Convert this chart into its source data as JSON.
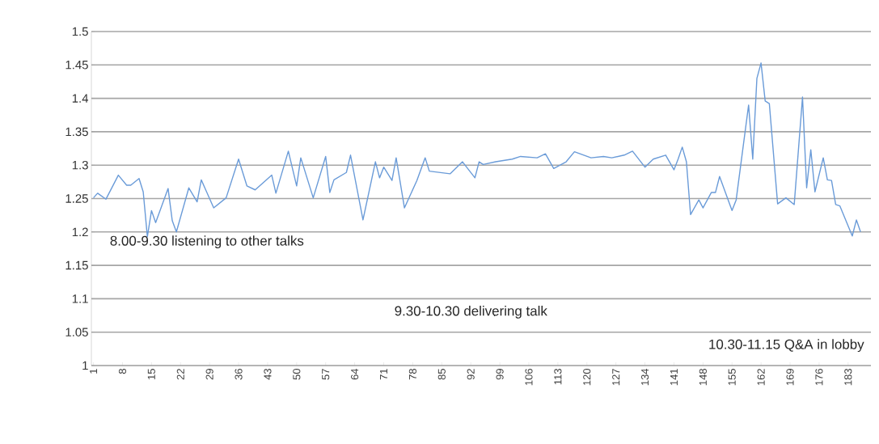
{
  "chart_data": {
    "type": "line",
    "x": [
      1,
      2,
      4,
      7,
      9,
      10,
      12,
      13,
      14,
      15,
      16,
      19,
      20,
      21,
      24,
      26,
      27,
      30,
      33,
      36,
      38,
      40,
      44,
      45,
      48,
      50,
      51,
      54,
      57,
      58,
      59,
      62,
      63,
      66,
      69,
      70,
      71,
      73,
      74,
      76,
      79,
      81,
      82,
      87,
      90,
      93,
      94,
      95,
      98,
      102,
      104,
      108,
      110,
      112,
      115,
      117,
      121,
      124,
      126,
      129,
      131,
      134,
      136,
      139,
      141,
      142,
      143,
      144,
      145,
      147,
      148,
      150,
      151,
      152,
      155,
      156,
      159,
      160,
      161,
      162,
      163,
      164,
      166,
      168,
      170,
      172,
      173,
      174,
      175,
      177,
      178,
      179,
      180,
      181,
      184,
      185,
      186
    ],
    "values": [
      1.251,
      1.258,
      1.249,
      1.285,
      1.27,
      1.27,
      1.28,
      1.26,
      1.193,
      1.232,
      1.214,
      1.265,
      1.217,
      1.2,
      1.266,
      1.245,
      1.278,
      1.236,
      1.251,
      1.309,
      1.269,
      1.263,
      1.285,
      1.258,
      1.321,
      1.269,
      1.311,
      1.251,
      1.313,
      1.259,
      1.278,
      1.289,
      1.315,
      1.218,
      1.305,
      1.281,
      1.297,
      1.277,
      1.311,
      1.236,
      1.277,
      1.311,
      1.291,
      1.287,
      1.305,
      1.281,
      1.305,
      1.301,
      1.305,
      1.309,
      1.313,
      1.311,
      1.317,
      1.295,
      1.305,
      1.32,
      1.311,
      1.313,
      1.311,
      1.315,
      1.321,
      1.297,
      1.309,
      1.315,
      1.293,
      1.309,
      1.327,
      1.305,
      1.226,
      1.248,
      1.236,
      1.259,
      1.259,
      1.283,
      1.232,
      1.248,
      1.39,
      1.309,
      1.43,
      1.453,
      1.396,
      1.392,
      1.242,
      1.251,
      1.241,
      1.402,
      1.266,
      1.323,
      1.26,
      1.311,
      1.278,
      1.277,
      1.241,
      1.239,
      1.194,
      1.218,
      1.2
    ],
    "color": "#6a9bd8",
    "xlim": [
      0.5,
      188.5
    ],
    "xticks": [
      1,
      8,
      15,
      22,
      29,
      36,
      43,
      50,
      57,
      64,
      71,
      78,
      85,
      92,
      99,
      106,
      113,
      120,
      127,
      134,
      141,
      148,
      155,
      162,
      169,
      176,
      183
    ],
    "ylim": [
      1,
      1.5
    ],
    "yticks": [
      1,
      1.05,
      1.1,
      1.15,
      1.2,
      1.25,
      1.3,
      1.35,
      1.4,
      1.45,
      1.5
    ],
    "grid": "y",
    "marker": "none",
    "line_style": "solid",
    "annotations": [
      "8.00-9.30 listening to other talks",
      "9.30-10.30 delivering talk",
      "10.30-11.15 Q&A in lobby"
    ]
  }
}
